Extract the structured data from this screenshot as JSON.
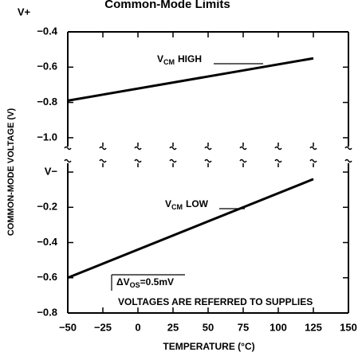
{
  "chart_data": [
    {
      "type": "line",
      "title": "Common-Mode Limits",
      "top_label": "V+",
      "ylabel": "COMMON-MODE VOLTAGE (V)",
      "xlim": [
        -50,
        150
      ],
      "xticks": [
        -50,
        -25,
        0,
        25,
        50,
        75,
        100,
        125,
        150
      ],
      "ylim": [
        -1.05,
        -0.4
      ],
      "yticks": [
        {
          "value": -0.4,
          "label": "−0.4"
        },
        {
          "value": -0.6,
          "label": "−0.6"
        },
        {
          "value": -0.8,
          "label": "−0.8"
        },
        {
          "value": -1.0,
          "label": "−1.0"
        }
      ],
      "x": [
        -50,
        125
      ],
      "series": [
        {
          "color": "#000000",
          "values": [
            -0.79,
            -0.55
          ]
        }
      ],
      "annotations": [
        {
          "text": "V",
          "sub": "CM",
          "tail": "HIGH"
        }
      ]
    },
    {
      "type": "line",
      "xlabel": "TEMPERATURE (°C)",
      "xlim": [
        -50,
        150
      ],
      "xticks": [
        {
          "value": -50,
          "label": "−50"
        },
        {
          "value": -25,
          "label": "−25"
        },
        0,
        25,
        50,
        75,
        100,
        125,
        150
      ],
      "ylim": [
        -0.8,
        0.05
      ],
      "yticks": [
        {
          "value": 0,
          "label": "V−"
        },
        {
          "value": -0.2,
          "label": "−0.2"
        },
        {
          "value": -0.4,
          "label": "−0.4"
        },
        {
          "value": -0.6,
          "label": "−0.6"
        },
        {
          "value": -0.8,
          "label": "−0.8"
        }
      ],
      "x": [
        -50,
        125
      ],
      "series": [
        {
          "color": "#000000",
          "values": [
            -0.6,
            -0.04
          ]
        }
      ],
      "annotations": [
        {
          "text": "V",
          "sub": "CM",
          "tail": "LOW"
        },
        {
          "text": "ΔV",
          "sub": "OS",
          "tail": "=0.5mV"
        },
        {
          "text": "VOLTAGES ARE REFERRED TO SUPPLIES"
        }
      ]
    }
  ]
}
